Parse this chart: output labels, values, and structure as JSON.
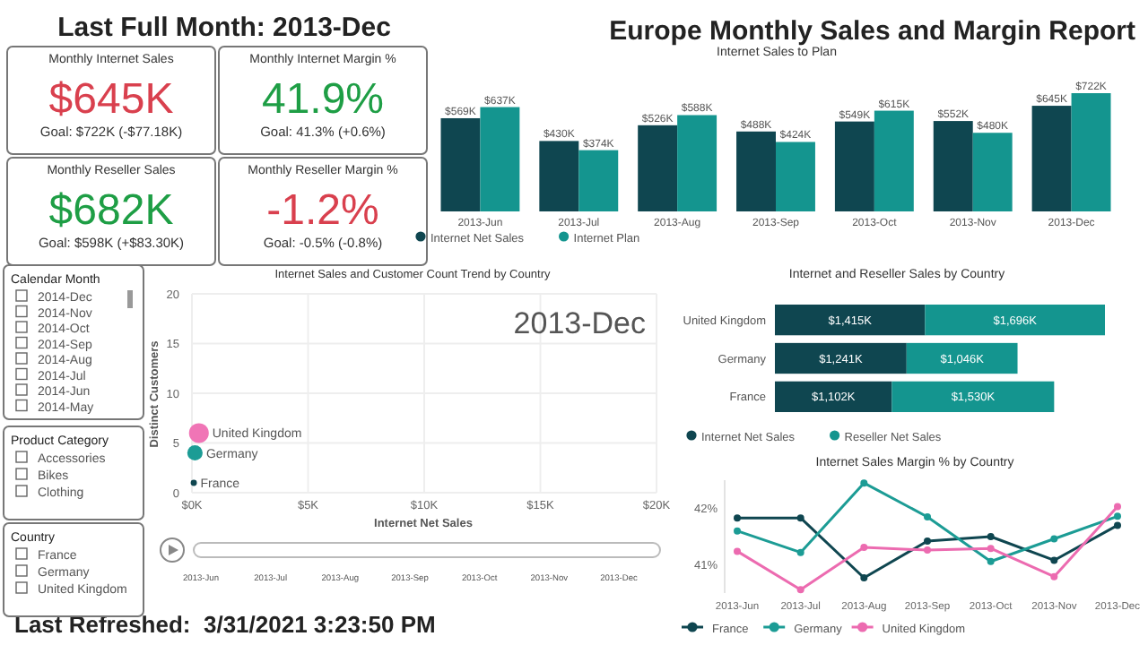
{
  "chart_data": [
    {
      "type": "other",
      "title": "Last Full Month: 2013-Dec",
      "annotations": [
        "Europe Monthly Sales and Margin Report",
        "Last Refreshed:  3/31/2021 3:23:50 PM"
      ]
    },
    {
      "type": "other",
      "title": "Monthly Internet Sales",
      "annotations": [
        "$645K",
        "Goal: $722K (-$77.18K)"
      ],
      "colors": [
        "#d9404e"
      ]
    },
    {
      "type": "other",
      "title": "Monthly Internet Margin %",
      "annotations": [
        "41.9%",
        "Goal: 41.3% (+0.6%)"
      ],
      "colors": [
        "#1e9e45"
      ]
    },
    {
      "type": "other",
      "title": "Monthly Reseller Sales",
      "annotations": [
        "$682K",
        "Goal: $598K (+$83.30K)"
      ],
      "colors": [
        "#1e9e45"
      ]
    },
    {
      "type": "other",
      "title": "Monthly Reseller Margin %",
      "annotations": [
        "-1.2%",
        "Goal: -0.5% (-0.8%)"
      ],
      "colors": [
        "#d9404e"
      ]
    },
    {
      "type": "bar",
      "title": "Internet Sales to Plan",
      "categories": [
        "2013-Jun",
        "2013-Jul",
        "2013-Aug",
        "2013-Sep",
        "2013-Oct",
        "2013-Nov",
        "2013-Dec"
      ],
      "legend": "bottom left",
      "series": [
        {
          "name": "Internet Net Sales",
          "color": "#0f4650",
          "values": [
            569,
            430,
            526,
            488,
            549,
            552,
            645
          ],
          "value_labels": [
            "$569K",
            "$430K",
            "$526K",
            "$488K",
            "$549K",
            "$552K",
            "$645K"
          ]
        },
        {
          "name": "Internet Plan",
          "color": "#14958f",
          "values": [
            637,
            374,
            588,
            424,
            615,
            480,
            722
          ],
          "value_labels": [
            "$637K",
            "$374K",
            "$588K",
            "$424K",
            "$615K",
            "$480K",
            "$722K"
          ]
        }
      ]
    },
    {
      "type": "other",
      "title": "Calendar Month",
      "annotations": [
        "2014-Dec",
        "2014-Nov",
        "2014-Oct",
        "2014-Sep",
        "2014-Aug",
        "2014-Jul",
        "2014-Jun",
        "2014-May"
      ]
    },
    {
      "type": "bubble",
      "title": "Internet Sales and Customer Count Trend by Country",
      "xlabel": "Internet Net Sales",
      "ylabel": "Distinct Customers",
      "xlim": [
        0,
        20000
      ],
      "xticks": [
        {
          "value": 0,
          "label": "$0K"
        },
        {
          "value": 5000,
          "label": "$5K"
        },
        {
          "value": 10000,
          "label": "$10K"
        },
        {
          "value": 15000,
          "label": "$15K"
        },
        {
          "value": 20000,
          "label": "$20K"
        }
      ],
      "ylim": [
        0,
        20
      ],
      "yticks": [
        0,
        5,
        10,
        15,
        20
      ],
      "grid": true,
      "annotations": [
        "2013-Dec",
        "2013-Jun",
        "2013-Jul",
        "2013-Aug",
        "2013-Sep",
        "2013-Oct",
        "2013-Nov",
        "2013-Dec"
      ],
      "series": [
        {
          "name": "United Kingdom",
          "color": "#f075b6",
          "x": [
            300
          ],
          "values": [
            6
          ],
          "sizes": [
            1
          ]
        },
        {
          "name": "Germany",
          "color": "#1c9c95",
          "x": [
            130
          ],
          "values": [
            4
          ],
          "sizes": [
            0.6
          ]
        },
        {
          "name": "France",
          "color": "#0f4650",
          "x": [
            80
          ],
          "values": [
            1
          ],
          "sizes": [
            0.1
          ]
        }
      ]
    },
    {
      "type": "bar",
      "orientation": "horizontal",
      "stacked": true,
      "title": "Internet and Reseller Sales by Country",
      "categories": [
        "United Kingdom",
        "Germany",
        "France"
      ],
      "legend": "bottom left",
      "series": [
        {
          "name": "Internet Net Sales",
          "color": "#0f4650",
          "values": [
            1415,
            1241,
            1102
          ],
          "value_labels": [
            "$1,415K",
            "$1,241K",
            "$1,102K"
          ]
        },
        {
          "name": "Reseller Net Sales",
          "color": "#14958f",
          "values": [
            1696,
            1046,
            1530
          ],
          "value_labels": [
            "$1,696K",
            "$1,046K",
            "$1,530K"
          ]
        }
      ]
    },
    {
      "type": "other",
      "title": "Product Category",
      "annotations": [
        "Accessories",
        "Bikes",
        "Clothing"
      ]
    },
    {
      "type": "other",
      "title": "Country",
      "annotations": [
        "France",
        "Germany",
        "United Kingdom"
      ]
    },
    {
      "type": "line",
      "title": "Internet Sales Margin % by Country",
      "categories": [
        "2013-Jun",
        "2013-Jul",
        "2013-Aug",
        "2013-Sep",
        "2013-Oct",
        "2013-Nov",
        "2013-Dec"
      ],
      "ylim": [
        40.5,
        42.5
      ],
      "yticks": [
        {
          "value": 41,
          "label": "41%"
        },
        {
          "value": 42,
          "label": "42%"
        }
      ],
      "marker": "circle",
      "legend": "bottom left",
      "series": [
        {
          "name": "France",
          "color": "#0f4650",
          "values": [
            41.83,
            41.83,
            40.77,
            41.42,
            41.5,
            41.08,
            41.7
          ]
        },
        {
          "name": "Germany",
          "color": "#1c9c95",
          "values": [
            41.6,
            41.22,
            42.45,
            41.85,
            41.06,
            41.46,
            41.86
          ]
        },
        {
          "name": "United Kingdom",
          "color": "#ec6bb0",
          "values": [
            41.24,
            40.56,
            41.31,
            41.26,
            41.29,
            40.79,
            42.03
          ]
        }
      ]
    }
  ]
}
